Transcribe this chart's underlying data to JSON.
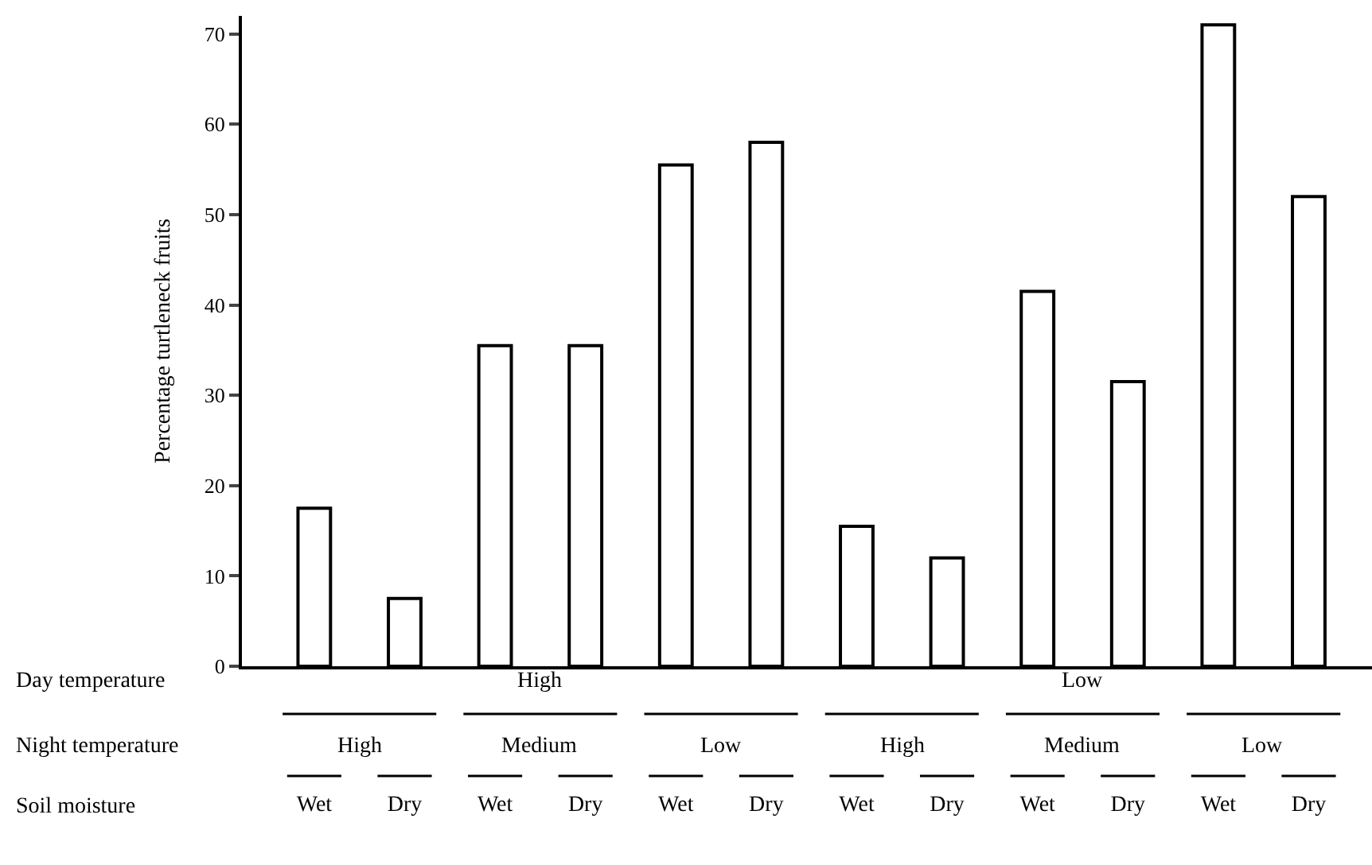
{
  "chart_data": {
    "type": "bar",
    "ylabel": "Percentage turtleneck fruits",
    "categories": [
      "Wet",
      "Dry",
      "Wet",
      "Dry",
      "Wet",
      "Dry",
      "Wet",
      "Dry",
      "Wet",
      "Dry",
      "Wet",
      "Dry"
    ],
    "values": [
      17.5,
      7.5,
      35.5,
      35.5,
      55.5,
      58,
      15.5,
      12,
      41.5,
      31.5,
      71,
      52
    ],
    "color": "#ffffff",
    "ylim": [
      0,
      72
    ],
    "yticks": [
      0,
      10,
      20,
      30,
      40,
      50,
      60,
      70
    ],
    "annotations": [
      "Day temperature",
      "Night temperature",
      "Soil moisture",
      "High",
      "Low",
      "High",
      "Medium",
      "Low",
      "High",
      "Medium",
      "Low"
    ]
  }
}
